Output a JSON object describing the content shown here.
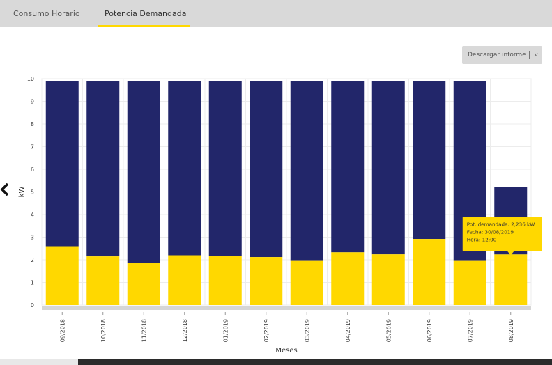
{
  "tabs": [
    {
      "label": "Consumo Horario"
    },
    {
      "label": "Potencia Demandada"
    }
  ],
  "download_button": {
    "label": "Descargar informe",
    "chevron": "v"
  },
  "icons": {
    "prev": "chevron-left-icon",
    "dropdown": "chevron-down-icon"
  },
  "colors": {
    "demand": "#ffd800",
    "contracted": "#22266a",
    "tab_bg": "#d9d9d9"
  },
  "chart_data": {
    "type": "bar",
    "ylabel": "kW",
    "xlabel": "Meses",
    "ylim": [
      0,
      10
    ],
    "yticks": [
      0,
      1,
      2,
      3,
      4,
      5,
      6,
      7,
      8,
      9,
      10
    ],
    "grid": true,
    "stacked": true,
    "categories": [
      "09/2018",
      "10/2018",
      "11/2018",
      "12/2018",
      "01/2019",
      "02/2019",
      "03/2019",
      "04/2019",
      "05/2019",
      "06/2019",
      "07/2019",
      "08/2019"
    ],
    "series": [
      {
        "color": "#ffd800",
        "values": [
          2.6,
          2.15,
          1.85,
          2.2,
          2.18,
          2.12,
          1.98,
          2.33,
          2.24,
          2.92,
          1.98,
          2.236
        ]
      },
      {
        "color": "#22266a",
        "values": [
          7.3,
          7.75,
          8.05,
          7.7,
          7.72,
          7.78,
          7.92,
          7.57,
          7.66,
          6.98,
          7.92,
          2.964
        ]
      }
    ],
    "tooltip": {
      "line1": "Pot. demandada: 2,236 kW",
      "line2": "Fecha: 30/08/2019",
      "line3": "Hora: 12:00",
      "category_index": 11
    }
  }
}
